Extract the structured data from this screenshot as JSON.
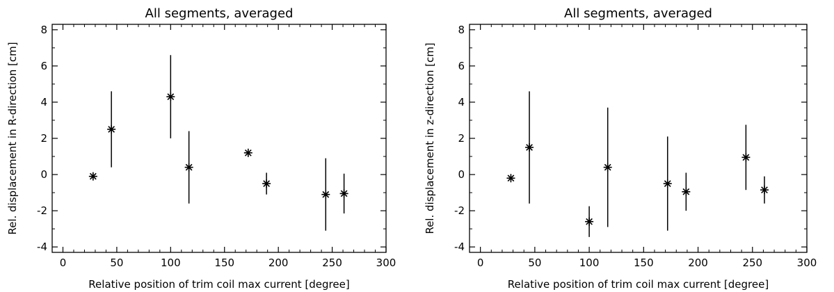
{
  "chart_data": [
    {
      "type": "scatter",
      "title": "All segments, averaged",
      "xlabel": "Relative position of trim coil max current [degree]",
      "ylabel": "Rel. displacement in R-direction [cm]",
      "xlim": [
        -10,
        300
      ],
      "ylim": [
        -4.3,
        8.3
      ],
      "xticks": [
        0,
        50,
        100,
        150,
        200,
        250,
        300
      ],
      "yticks": [
        -4,
        -2,
        0,
        2,
        4,
        6,
        8
      ],
      "grid": false,
      "marker": "asterisk",
      "series": [
        {
          "x": [
            28,
            45,
            100,
            117,
            172,
            189,
            244,
            261
          ],
          "y": [
            -0.1,
            2.5,
            4.3,
            0.4,
            1.2,
            -0.5,
            -1.1,
            -1.05
          ],
          "yerr": [
            0.05,
            2.1,
            2.3,
            2.0,
            0.05,
            0.6,
            2.0,
            1.1
          ]
        }
      ]
    },
    {
      "type": "scatter",
      "title": "All segments, averaged",
      "xlabel": "Relative position of trim coil max current [degree]",
      "ylabel": "Rel. displacement in z-direction [cm]",
      "xlim": [
        -10,
        300
      ],
      "ylim": [
        -4.3,
        8.3
      ],
      "xticks": [
        0,
        50,
        100,
        150,
        200,
        250,
        300
      ],
      "yticks": [
        -4,
        -2,
        0,
        2,
        4,
        6,
        8
      ],
      "grid": false,
      "marker": "asterisk",
      "series": [
        {
          "x": [
            28,
            45,
            100,
            117,
            172,
            189,
            244,
            261
          ],
          "y": [
            -0.2,
            1.5,
            -2.6,
            0.4,
            -0.5,
            -0.95,
            0.95,
            -0.85
          ],
          "yerr": [
            0.05,
            3.1,
            0.85,
            3.3,
            2.6,
            1.05,
            1.8,
            0.75
          ]
        }
      ]
    }
  ]
}
